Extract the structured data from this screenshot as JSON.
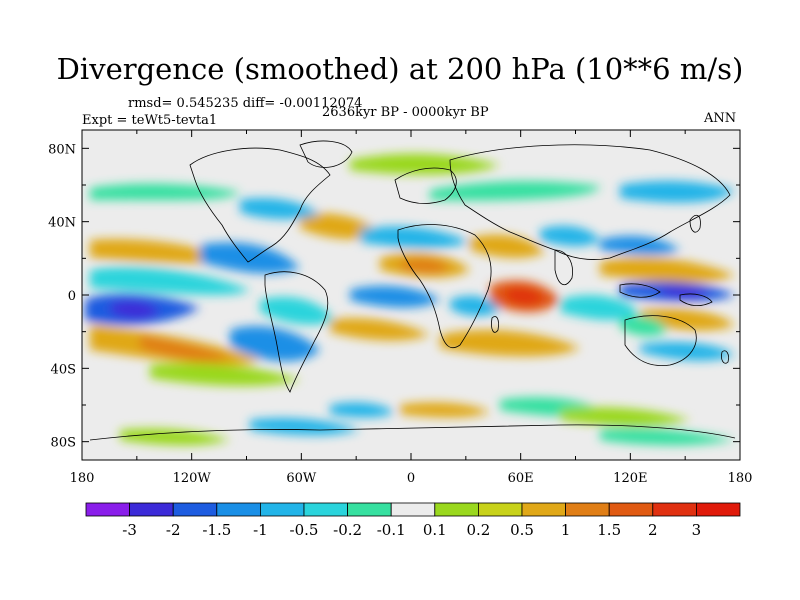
{
  "title": "Divergence (smoothed) at 200 hPa (10**6 m/s)",
  "stats_text": "rmsd= 0.545235 diff= -0.00112074",
  "expt_text": "Expt = teWt5-tevta1",
  "period_text": "2636kyr BP - 0000kyr BP",
  "season_text": "ANN",
  "lat_labels": [
    "80N",
    "40N",
    "0",
    "40S",
    "80S"
  ],
  "lon_labels": [
    "180",
    "120W",
    "60W",
    "0",
    "60E",
    "120E",
    "180"
  ],
  "colorbar": {
    "labels": [
      "-3",
      "-2",
      "-1.5",
      "-1",
      "-0.5",
      "-0.2",
      "-0.1",
      "0.1",
      "0.2",
      "0.5",
      "1",
      "1.5",
      "2",
      "3"
    ],
    "colors": [
      "#8a1eea",
      "#3c2ad8",
      "#1d5ce0",
      "#1a8fe6",
      "#22b4e8",
      "#2ad4dc",
      "#36e0a0",
      "#ececec",
      "#9ad81e",
      "#c8d21a",
      "#e0a818",
      "#e07e16",
      "#e05a12",
      "#e03010",
      "#e01a0a"
    ]
  }
}
